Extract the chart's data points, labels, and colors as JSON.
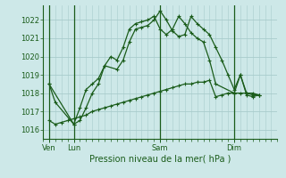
{
  "xlabel": "Pression niveau de la mer( hPa )",
  "bg_color": "#cde8e8",
  "grid_color": "#a8cccc",
  "line_color": "#1a5c1a",
  "ylim": [
    1015.5,
    1022.8
  ],
  "yticks": [
    1016,
    1017,
    1018,
    1019,
    1020,
    1021,
    1022
  ],
  "day_labels": [
    "Ven",
    "Lun",
    "Sam",
    "Dim"
  ],
  "day_positions": [
    6,
    30,
    114,
    186
  ],
  "xlim": [
    0,
    228
  ],
  "series1_x": [
    6,
    12,
    30,
    36,
    42,
    48,
    54,
    60,
    72,
    78,
    84,
    90,
    96,
    102,
    108,
    114,
    120,
    126,
    132,
    138,
    144,
    150,
    156,
    162,
    168,
    174,
    180,
    186,
    192,
    198,
    204,
    210
  ],
  "series1_y": [
    1018.5,
    1017.5,
    1016.3,
    1017.2,
    1018.2,
    1018.5,
    1018.8,
    1019.5,
    1019.3,
    1019.8,
    1020.8,
    1021.5,
    1021.6,
    1021.7,
    1022.0,
    1022.5,
    1022.0,
    1021.4,
    1021.1,
    1021.2,
    1022.2,
    1021.8,
    1021.5,
    1021.2,
    1020.5,
    1019.8,
    1019.0,
    1018.2,
    1019.0,
    1017.9,
    1017.8,
    1017.9
  ],
  "series2_x": [
    6,
    30,
    36,
    42,
    48,
    54,
    60,
    66,
    72,
    78,
    84,
    90,
    96,
    102,
    108,
    114,
    120,
    126,
    132,
    138,
    144,
    150,
    156,
    162,
    168,
    186,
    192,
    198,
    204,
    210
  ],
  "series2_y": [
    1018.5,
    1016.3,
    1016.5,
    1017.2,
    1018.0,
    1018.5,
    1019.5,
    1020.0,
    1019.8,
    1020.5,
    1021.5,
    1021.8,
    1021.9,
    1022.0,
    1022.2,
    1021.5,
    1021.2,
    1021.5,
    1022.2,
    1021.8,
    1021.3,
    1021.0,
    1020.8,
    1019.8,
    1018.5,
    1018.0,
    1019.0,
    1018.0,
    1017.9,
    1017.9
  ],
  "series3_x": [
    6,
    12,
    18,
    24,
    30,
    36,
    42,
    48,
    54,
    60,
    66,
    72,
    78,
    84,
    90,
    96,
    102,
    108,
    114,
    120,
    126,
    132,
    138,
    144,
    150,
    156,
    162,
    168,
    174,
    180,
    186,
    192,
    198,
    204,
    210
  ],
  "series3_y": [
    1016.5,
    1016.3,
    1016.4,
    1016.5,
    1016.6,
    1016.7,
    1016.8,
    1017.0,
    1017.1,
    1017.2,
    1017.3,
    1017.4,
    1017.5,
    1017.6,
    1017.7,
    1017.8,
    1017.9,
    1018.0,
    1018.1,
    1018.2,
    1018.3,
    1018.4,
    1018.5,
    1018.5,
    1018.6,
    1018.6,
    1018.7,
    1017.8,
    1017.9,
    1018.0,
    1018.0,
    1018.0,
    1018.0,
    1018.0,
    1017.9
  ]
}
